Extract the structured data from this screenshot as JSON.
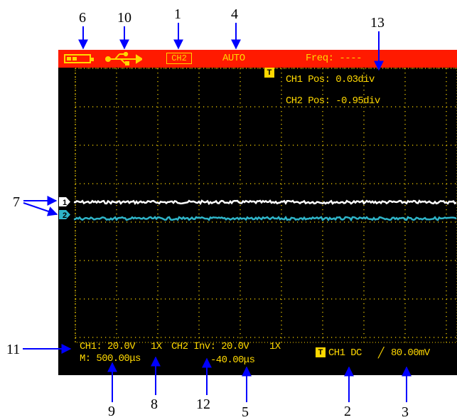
{
  "status_bar": {
    "channel_badge": "CH2",
    "mode": "AUTO",
    "frequency": "Freq: ----"
  },
  "readouts": {
    "ch1_pos": "CH1 Pos: 0.03div",
    "ch2_pos": "CH2 Pos: -0.95div",
    "ch1_scale": "CH1: 20.0V",
    "ch1_probe": "1X",
    "ch2_scale": "CH2 Inv: 20.0V",
    "ch2_probe": "1X",
    "timebase": "M: 500.00μs",
    "horizontal_position": "-40.00μs",
    "trigger_badge": "T",
    "trigger_source": "CH1 DC",
    "trigger_slope": "╱",
    "trigger_level": "80.00mV"
  },
  "markers": {
    "trigger_marker": "T",
    "ch1_marker": "1",
    "ch2_marker": "2"
  },
  "callouts": {
    "c1": "1",
    "c2": "2",
    "c3": "3",
    "c4": "4",
    "c5": "5",
    "c6": "6",
    "c7": "7",
    "c8": "8",
    "c9": "9",
    "c10": "10",
    "c11": "11",
    "c12": "12",
    "c13": "13"
  },
  "colors": {
    "status_bar": "#ff1a00",
    "text": "#ffd800",
    "ch1_trace": "#ffffff",
    "ch2_trace": "#2fb4c8",
    "screen": "#000000",
    "callout_arrow": "#0000ff"
  },
  "icons": [
    "battery-icon",
    "usb-icon",
    "trigger-icon",
    "ch1-marker-icon",
    "ch2-marker-icon"
  ]
}
